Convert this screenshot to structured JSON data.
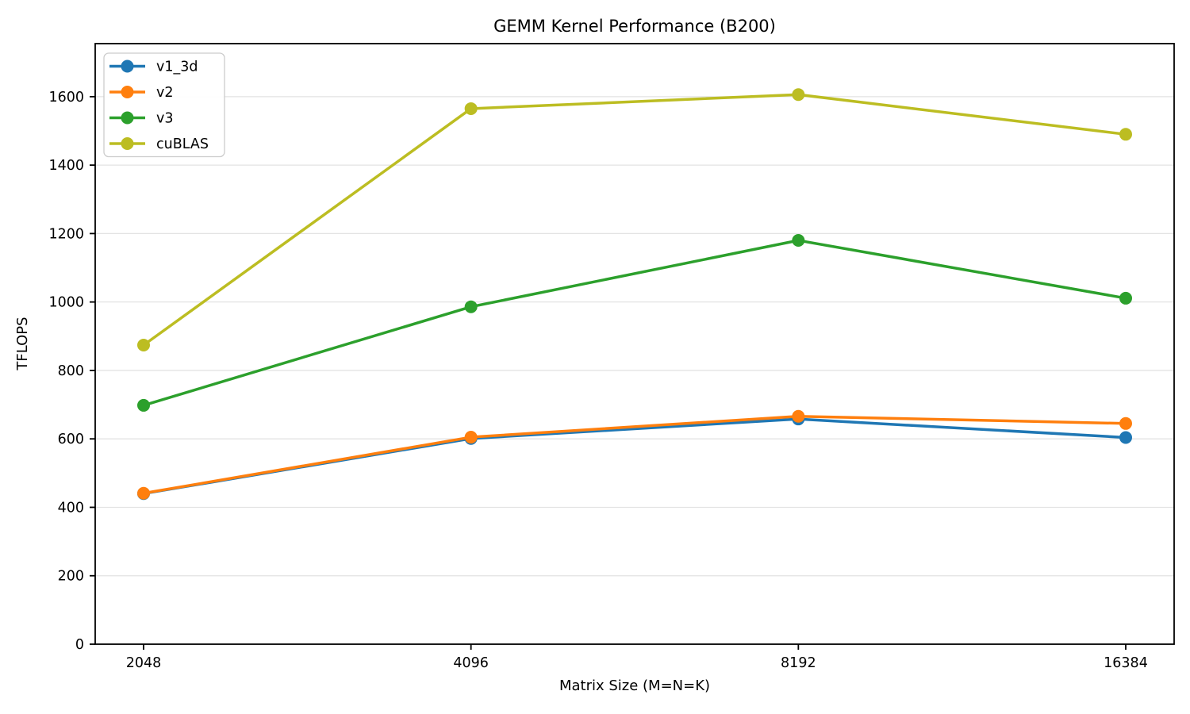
{
  "title": "GEMM Kernel Performance (B200)",
  "chart_data": {
    "type": "line",
    "title": "GEMM Kernel Performance (B200)",
    "xlabel": "Matrix Size (M=N=K)",
    "ylabel": "TFLOPS",
    "categories": [
      "2048",
      "4096",
      "8192",
      "16384"
    ],
    "series": [
      {
        "name": "v1_3d",
        "color": "#1f77b4",
        "values": [
          440,
          601,
          658,
          604
        ]
      },
      {
        "name": "v2",
        "color": "#ff7f0e",
        "values": [
          441,
          605,
          666,
          645
        ]
      },
      {
        "name": "v3",
        "color": "#2ca02c",
        "values": [
          698,
          986,
          1180,
          1011
        ]
      },
      {
        "name": "cuBLAS",
        "color": "#bcbd22",
        "values": [
          874,
          1565,
          1606,
          1490
        ]
      }
    ],
    "ylim": [
      0,
      1755
    ],
    "yticks": [
      0,
      200,
      400,
      600,
      800,
      1000,
      1200,
      1400,
      1600
    ],
    "grid": true,
    "grid_color": "#e3e3e3",
    "legend_position": "upper left",
    "marker": "circle",
    "line_width": 3.5,
    "marker_radius": 8
  }
}
